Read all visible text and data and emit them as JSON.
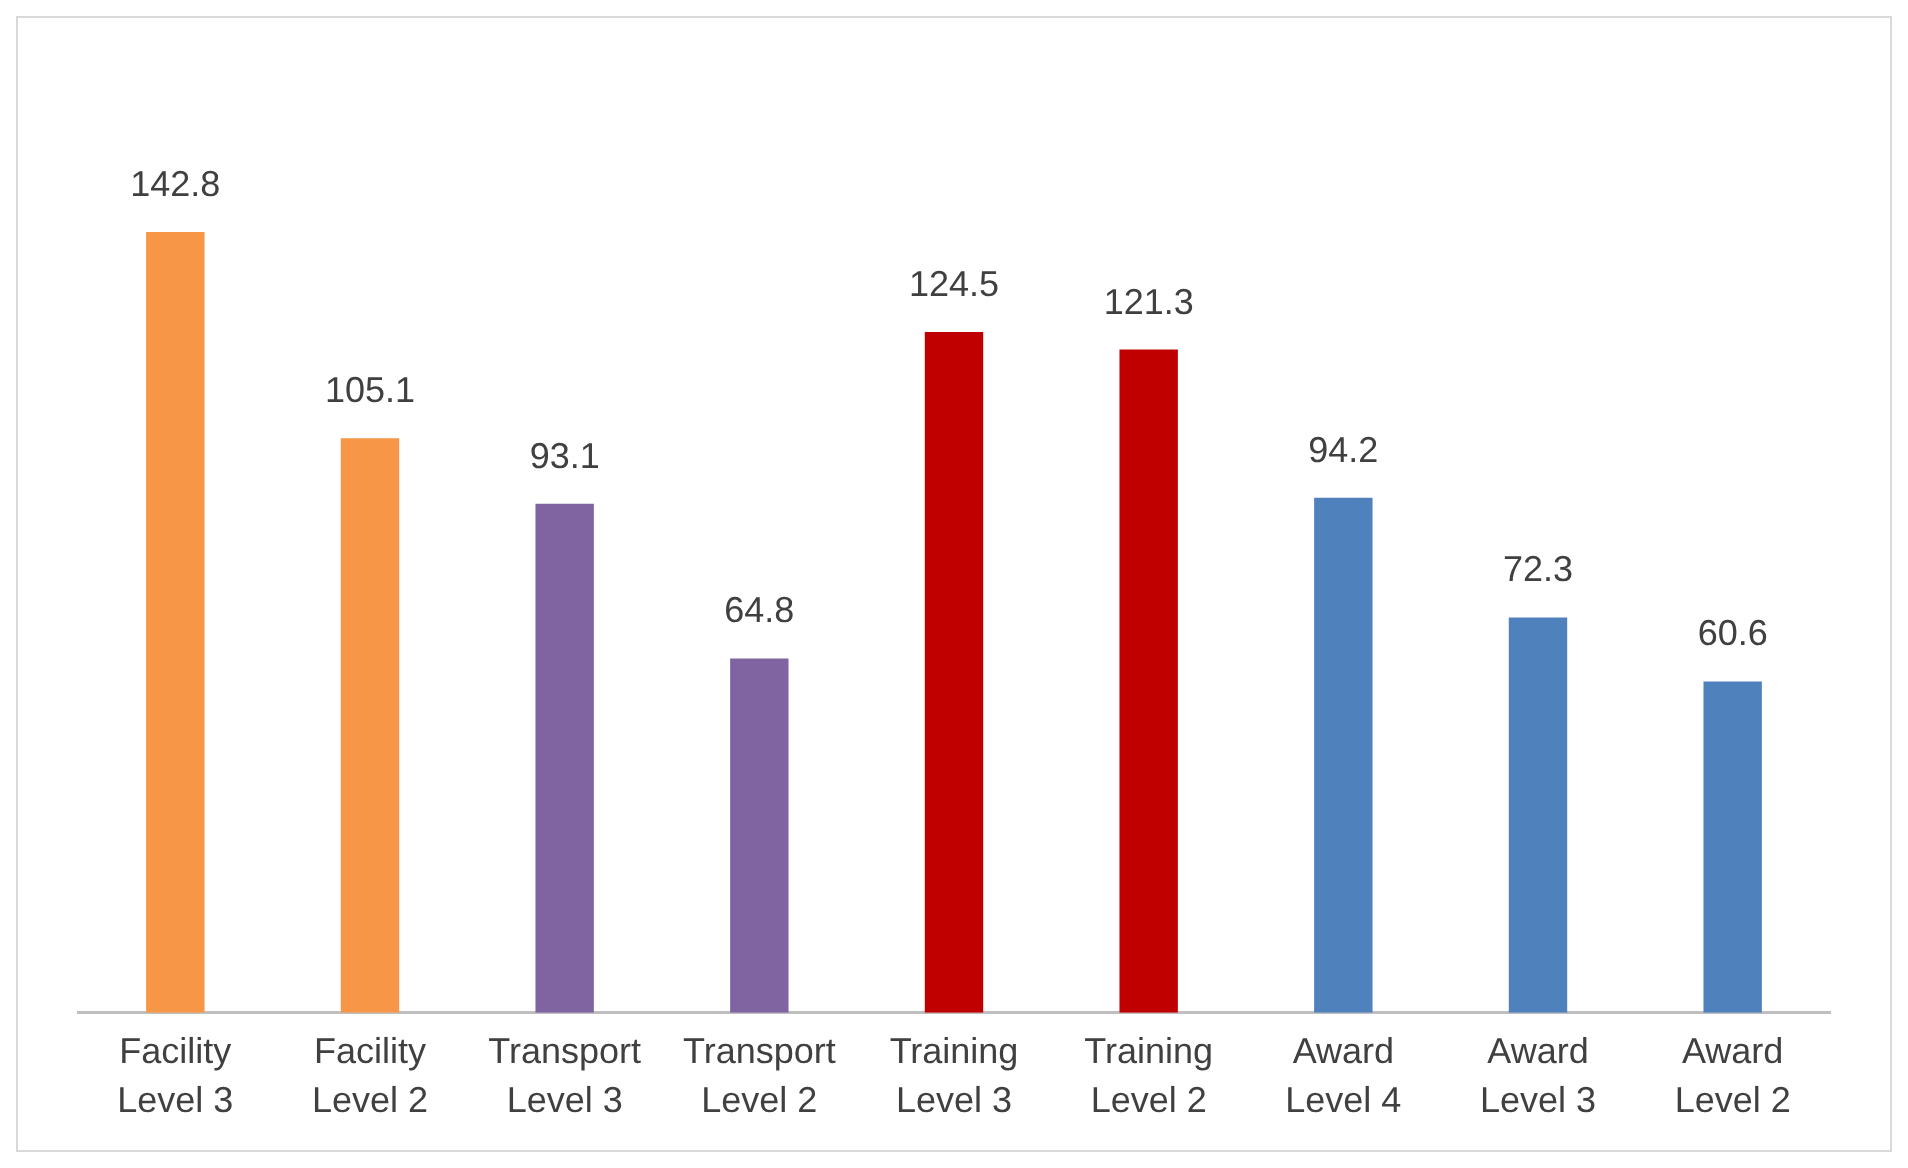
{
  "chart_data": {
    "type": "bar",
    "categories": [
      "Facility Level 3",
      "Facility Level 2",
      "Transport Level 3",
      "Transport Level 2",
      "Training Level 3",
      "Training Level 2",
      "Award Level 4",
      "Award Level 3",
      "Award Level 2"
    ],
    "values": [
      142.8,
      105.1,
      93.1,
      64.8,
      124.5,
      121.3,
      94.2,
      72.3,
      60.6
    ],
    "colors": [
      "#f79646",
      "#f79646",
      "#8064a2",
      "#8064a2",
      "#c00000",
      "#c00000",
      "#4f81bd",
      "#4f81bd",
      "#4f81bd"
    ],
    "data_labels": true,
    "grid": false,
    "legend": false,
    "tick_labels": "x"
  }
}
